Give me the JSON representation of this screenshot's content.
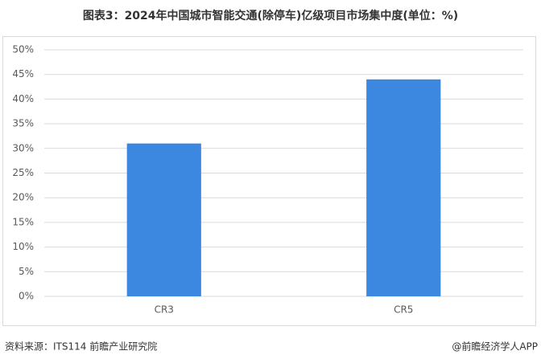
{
  "chart_data": {
    "type": "bar",
    "title": "图表3：2024年中国城市智能交通(除停车)亿级项目市场集中度(单位：%)",
    "categories": [
      "CR3",
      "CR5"
    ],
    "values": [
      31,
      44
    ],
    "color": "#3c87e0",
    "ylim": [
      0,
      50
    ],
    "yticks": [
      {
        "value": 0,
        "label": "0%"
      },
      {
        "value": 5,
        "label": "5%"
      },
      {
        "value": 10,
        "label": "10%"
      },
      {
        "value": 15,
        "label": "15%"
      },
      {
        "value": 20,
        "label": "20%"
      },
      {
        "value": 25,
        "label": "25%"
      },
      {
        "value": 30,
        "label": "30%"
      },
      {
        "value": 35,
        "label": "35%"
      },
      {
        "value": 40,
        "label": "40%"
      },
      {
        "value": 45,
        "label": "45%"
      },
      {
        "value": 50,
        "label": "50%"
      }
    ],
    "grid": true
  },
  "footer": {
    "source": "资料来源：ITS114 前瞻产业研究院",
    "credit": "@前瞻经济学人APP"
  }
}
